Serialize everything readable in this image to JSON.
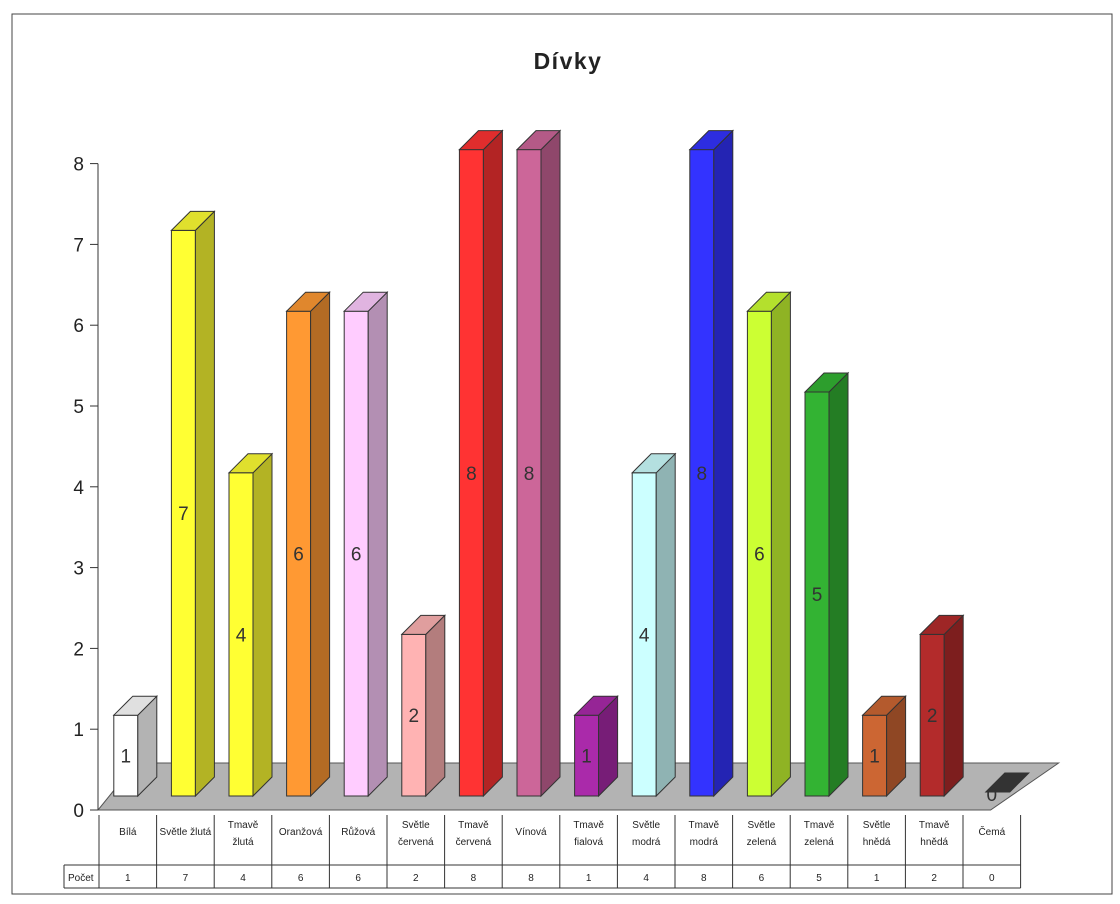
{
  "chart_data": {
    "type": "bar",
    "title": "Dívky",
    "xlabel": "",
    "ylabel": "",
    "ylim": [
      0,
      8
    ],
    "yticks": [
      0,
      1,
      2,
      3,
      4,
      5,
      6,
      7,
      8
    ],
    "grid": false,
    "three_d": true,
    "categories": [
      [
        "Bílá"
      ],
      [
        "Světle žlutá"
      ],
      [
        "Tmavě",
        "žlutá"
      ],
      [
        "Oranžová"
      ],
      [
        "Růžová"
      ],
      [
        "Světle",
        "červená"
      ],
      [
        "Tmavě",
        "červená"
      ],
      [
        "Vínová"
      ],
      [
        "Tmavě",
        "fialová"
      ],
      [
        "Světle",
        "modrá"
      ],
      [
        "Tmavě",
        "modrá"
      ],
      [
        "Světle",
        "zelená"
      ],
      [
        "Tmavě",
        "zelená"
      ],
      [
        "Světle",
        "hnědá"
      ],
      [
        "Tmavě",
        "hnědá"
      ],
      [
        "Čemá"
      ]
    ],
    "series": [
      {
        "name": "Počet",
        "values": [
          1,
          7,
          4,
          6,
          6,
          2,
          8,
          8,
          1,
          4,
          8,
          6,
          5,
          1,
          2,
          0
        ]
      }
    ],
    "bar_colors": [
      "#ffffff",
      "#ffff33",
      "#ffff33",
      "#ff9933",
      "#ffccff",
      "#ffb3b3",
      "#ff3333",
      "#cc6699",
      "#aa2aaa",
      "#ccffff",
      "#3333ff",
      "#ccff33",
      "#33b333",
      "#cc6633",
      "#b32b2b",
      "#333333"
    ],
    "table_values": [
      "1",
      "7",
      "4",
      "6",
      "6",
      "2",
      "8",
      "8",
      "1",
      "4",
      "8",
      "6",
      "5",
      "1",
      "2",
      "0"
    ],
    "table_row_label": "Počet"
  }
}
